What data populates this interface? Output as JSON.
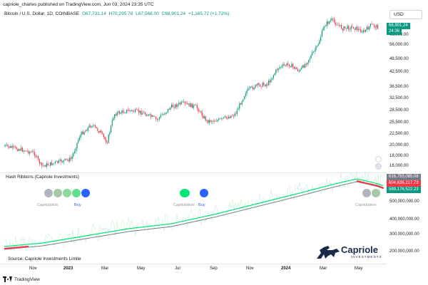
{
  "header": {
    "published": "capriole_charles published on TradingView.com, Jun 03, 2024 23:35 UTC",
    "symbol": "Bitcoin / U.S. Dollar, 1D, COINBASE",
    "open": "O67,731.14",
    "high": "H70,295.78",
    "low": "L67,568.00",
    "close": "C68,901.24",
    "change": "+1,165.72 (+1.72%)"
  },
  "currency_button": "USD",
  "price_axis": {
    "ticks": [
      "66,000.00",
      "56,000.00",
      "48,500.00",
      "42,500.00",
      "36,500.00",
      "32,500.00",
      "28,500.00",
      "25,500.00",
      "22,500.00",
      "20,000.00",
      "18,000.00",
      "16,000.00"
    ],
    "last_price_tag": "68,901.24",
    "countdown": "24:36"
  },
  "indicator": {
    "title": "Hash Ribbons (Capriole Investments)",
    "tags": [
      "616,755,085.08",
      "604,636,217.73",
      "589,176,522.23"
    ],
    "ticks": [
      "500,000,000.00",
      "400,000,000.00",
      "300,000,000.00",
      "200,000,000.00"
    ],
    "labels": {
      "capitulation_1": "Capitulation",
      "buy_1": "Buy",
      "capitulation_2": "Capitulation",
      "buy_2": "Buy",
      "capitulation_3": "Capitulation"
    },
    "source": "Source: Capriole Investments Limite"
  },
  "logo": {
    "name": "Capriole",
    "sub": "INVESTMENTS"
  },
  "time_axis": [
    "Nov",
    "2023",
    "Mar",
    "May",
    "Jul",
    "Sep",
    "Nov",
    "2024",
    "Mar",
    "May"
  ],
  "footer": "TradingView",
  "colors": {
    "up": "#089981",
    "down": "#f23645",
    "ribbon_green": "#00e676",
    "ribbon_grey": "#787b86",
    "blue": "#2962ff"
  }
}
